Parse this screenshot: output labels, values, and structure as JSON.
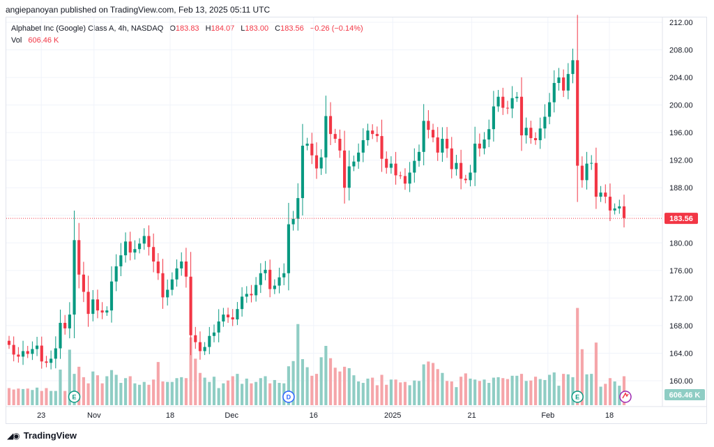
{
  "publish_line": "angiepanoyan published on TradingView.com, Feb 13, 2025 05:11 UTC",
  "legend": {
    "instrument": "Alphabet Inc (Google) Class A, 4h, NASDAQ",
    "o_label": "O",
    "o_value": "183.83",
    "h_label": "H",
    "h_value": "184.07",
    "l_label": "L",
    "l_value": "183.00",
    "c_label": "C",
    "c_value": "183.56",
    "change": "−0.26 (−0.14%)",
    "vol_label": "Vol",
    "vol_value": "606.46 K"
  },
  "brand": "TradingView",
  "colors": {
    "up": "#089981",
    "down": "#f23645",
    "vol_up": "#8fcdc4",
    "vol_down": "#f5a5a9",
    "grid": "#f0f3fa"
  },
  "chart_data": {
    "type": "candlestick",
    "title": "Alphabet Inc (Google) Class A, 4h, NASDAQ",
    "y_ticks": [
      "212.00",
      "208.00",
      "204.00",
      "200.00",
      "196.00",
      "192.00",
      "188.00",
      "184.00",
      "180.00",
      "176.00",
      "172.00",
      "168.00",
      "164.00",
      "160.00"
    ],
    "ylim": [
      156.5,
      213.5
    ],
    "x_tick_labels": [
      "23",
      "Nov",
      "18",
      "Dec",
      "16",
      "2025",
      "21",
      "Feb",
      "18"
    ],
    "last_price": "183.56",
    "last_volume": "606.46 K",
    "markers": [
      {
        "label": "E",
        "kind": "earnings"
      },
      {
        "label": "D",
        "kind": "dividend"
      },
      {
        "label": "E",
        "kind": "earnings"
      }
    ],
    "closes": [
      165.2,
      163.8,
      163.5,
      164.3,
      163.9,
      164.6,
      165.1,
      162.8,
      162.6,
      163.2,
      164.7,
      168.4,
      167.6,
      169.6,
      180.4,
      175.4,
      172.9,
      169.7,
      171.8,
      170.2,
      169.9,
      170.2,
      174.4,
      176.6,
      178.2,
      180.2,
      178.6,
      179.1,
      179.9,
      181.0,
      179.4,
      177.3,
      175.6,
      172.1,
      173.2,
      174.7,
      176.3,
      177.3,
      175.1,
      166.6,
      165.6,
      164.3,
      164.9,
      166.5,
      167.0,
      168.6,
      169.6,
      169.2,
      168.9,
      170.4,
      172.2,
      172.6,
      172.4,
      173.9,
      175.6,
      176.1,
      173.3,
      173.8,
      175.0,
      175.6,
      182.7,
      183.5,
      186.5,
      194.1,
      194.4,
      192.7,
      190.8,
      192.4,
      198.4,
      195.8,
      195.1,
      193.4,
      188.0,
      191.1,
      191.8,
      193.1,
      194.9,
      196.3,
      195.8,
      195.5,
      192.2,
      190.9,
      191.5,
      189.8,
      189.7,
      188.6,
      190.2,
      191.9,
      193.2,
      197.7,
      196.4,
      195.3,
      193.1,
      195.1,
      193.7,
      190.7,
      191.6,
      189.3,
      189.1,
      190.2,
      194.4,
      193.7,
      195.0,
      196.5,
      199.8,
      201.2,
      199.6,
      199.5,
      201.0,
      201.2,
      195.6,
      196.7,
      195.2,
      194.9,
      196.6,
      198.3,
      200.4,
      203.2,
      204.0,
      202.1,
      204.5,
      206.5,
      191.2,
      189.1,
      191.5,
      191.6,
      186.7,
      187.3,
      186.7,
      184.7,
      185.0,
      185.3,
      183.6
    ],
    "volumes": [
      0.36,
      0.33,
      0.35,
      0.34,
      0.35,
      0.32,
      0.37,
      0.3,
      0.36,
      0.3,
      0.3,
      0.75,
      0.3,
      1.17,
      0.66,
      0.81,
      0.59,
      0.46,
      0.71,
      0.63,
      0.46,
      0.61,
      0.74,
      0.64,
      0.47,
      0.57,
      0.61,
      0.46,
      0.43,
      0.49,
      0.43,
      0.54,
      0.91,
      0.5,
      0.49,
      0.49,
      0.57,
      0.59,
      0.57,
      1.43,
      0.98,
      0.68,
      0.58,
      0.49,
      0.6,
      0.36,
      0.46,
      0.52,
      0.61,
      0.66,
      0.45,
      0.56,
      0.46,
      0.49,
      0.57,
      0.61,
      0.46,
      0.53,
      0.47,
      0.46,
      0.82,
      0.93,
      1.71,
      0.97,
      0.8,
      0.62,
      0.66,
      1.01,
      1.25,
      0.99,
      0.79,
      0.71,
      0.81,
      0.78,
      0.63,
      0.5,
      0.47,
      0.56,
      0.58,
      0.42,
      0.64,
      0.43,
      0.54,
      0.54,
      0.48,
      0.49,
      0.42,
      0.52,
      0.51,
      0.86,
      0.92,
      0.89,
      0.76,
      0.68,
      0.51,
      0.5,
      0.38,
      0.6,
      0.67,
      0.56,
      0.54,
      0.51,
      0.54,
      0.47,
      0.58,
      0.59,
      0.57,
      0.55,
      0.62,
      0.62,
      0.66,
      0.51,
      0.52,
      0.6,
      0.55,
      0.53,
      0.64,
      0.69,
      0.41,
      0.66,
      0.65,
      0.59,
      2.05,
      1.18,
      0.65,
      0.66,
      1.32,
      0.39,
      0.45,
      0.57,
      0.5,
      0.41,
      0.61
    ]
  }
}
